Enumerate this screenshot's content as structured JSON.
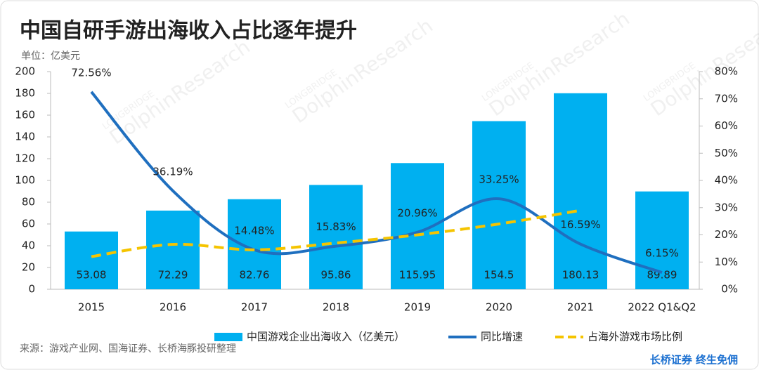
{
  "chart_data": {
    "type": "bar-line",
    "title": "中国自研手游出海收入占比逐年提升",
    "subtitle": "单位：亿美元",
    "source": "来源：游戏产业网、国海证券、长桥海豚投研整理",
    "footer": "长桥证券 终生免佣",
    "watermark": [
      "LONGBRIDGE",
      "DolphinResearch"
    ],
    "categories": [
      "2015",
      "2016",
      "2017",
      "2018",
      "2019",
      "2020",
      "2021",
      "2022 Q1&Q2"
    ],
    "series": [
      {
        "name": "中国游戏企业出海收入（亿美元）",
        "type": "bar",
        "color": "#00b0f0",
        "values": [
          53.08,
          72.29,
          82.76,
          95.86,
          115.95,
          154.5,
          180.13,
          89.89
        ]
      },
      {
        "name": "同比增速",
        "type": "line",
        "axis": "y2",
        "color": "#1f6fbf",
        "values": [
          72.56,
          36.19,
          14.48,
          15.83,
          20.96,
          33.25,
          16.59,
          6.15
        ],
        "value_labels": [
          "72.56%",
          "36.19%",
          "14.48%",
          "15.83%",
          "20.96%",
          "33.25%",
          "16.59%",
          "6.15%"
        ]
      },
      {
        "name": "占海外游戏市场比例",
        "type": "dashed-line",
        "axis": "y2",
        "color": "#f5c400",
        "values": [
          12,
          16.5,
          14.5,
          17,
          20,
          24,
          29,
          null
        ]
      }
    ],
    "ylim": [
      0,
      200
    ],
    "yticks": [
      0,
      20,
      40,
      60,
      80,
      100,
      120,
      140,
      160,
      180,
      200
    ],
    "y2lim": [
      0,
      80
    ],
    "y2ticks": [
      {
        "value": 0,
        "label": "0%"
      },
      {
        "value": 10,
        "label": "10%"
      },
      {
        "value": 20,
        "label": "20%"
      },
      {
        "value": 30,
        "label": "30%"
      },
      {
        "value": 40,
        "label": "40%"
      },
      {
        "value": 50,
        "label": "50%"
      },
      {
        "value": 60,
        "label": "60%"
      },
      {
        "value": 70,
        "label": "70%"
      },
      {
        "value": 80,
        "label": "80%"
      }
    ],
    "legend": "bottom",
    "grid": false
  }
}
